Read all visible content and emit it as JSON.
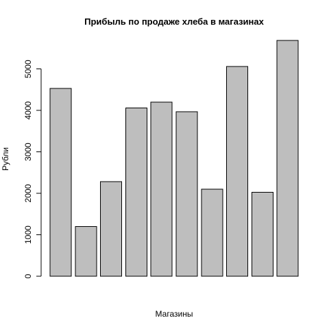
{
  "chart_data": {
    "type": "bar",
    "title": "Прибыль по продаже хлеба в магазинах",
    "xlabel": "Магазины",
    "ylabel": "Рубли",
    "values": [
      4530,
      1200,
      2280,
      4060,
      4200,
      3970,
      2100,
      5060,
      2030,
      5690
    ],
    "ylim": [
      0,
      5690
    ],
    "yticks": [
      0,
      1000,
      2000,
      3000,
      4000,
      5000
    ],
    "yticks_labels": [
      "0",
      "1000",
      "2000",
      "3000",
      "4000",
      "5000"
    ],
    "bar_color": "#bebebe",
    "grid": false,
    "legend": "none"
  }
}
